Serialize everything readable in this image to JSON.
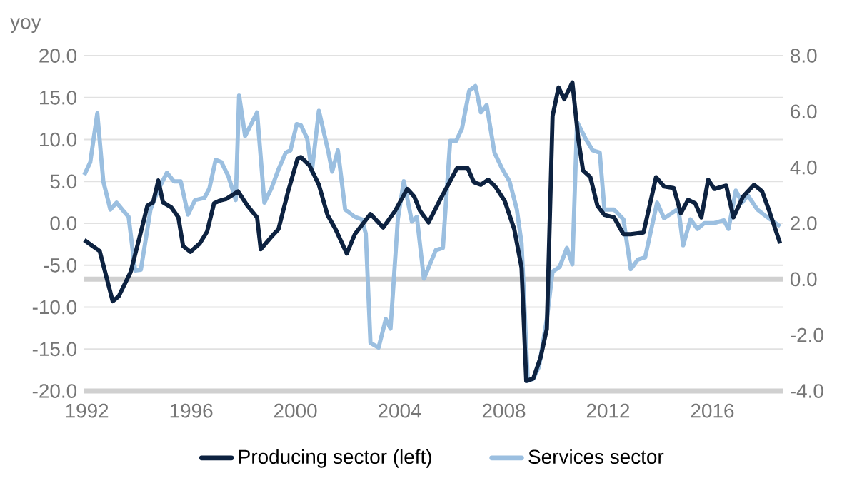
{
  "chart_data": {
    "type": "line",
    "ylabel": "yoy",
    "xlim": [
      1991.9,
      2018.7
    ],
    "xticks": [
      1992,
      1996,
      2000,
      2004,
      2008,
      2012,
      2016
    ],
    "ylim": [
      -20,
      20
    ],
    "yticks": [
      {
        "value": 20,
        "label": "20.0"
      },
      {
        "value": 15,
        "label": "15.0"
      },
      {
        "value": 10,
        "label": "10.0"
      },
      {
        "value": 5,
        "label": "5.0"
      },
      {
        "value": 0,
        "label": "0.0"
      },
      {
        "value": -5,
        "label": "-5.0"
      },
      {
        "value": -10,
        "label": "-10.0"
      },
      {
        "value": -15,
        "label": "-15.0"
      },
      {
        "value": -20,
        "label": "-20.0"
      }
    ],
    "y2lim": [
      -4,
      8
    ],
    "y2ticks": [
      {
        "value": 8,
        "label": "8.0"
      },
      {
        "value": 6,
        "label": "6.0"
      },
      {
        "value": 4,
        "label": "4.0"
      },
      {
        "value": 2,
        "label": "2.0"
      },
      {
        "value": 0,
        "label": "0.0"
      },
      {
        "value": -2,
        "label": "-2.0"
      },
      {
        "value": -4,
        "label": "-4.0"
      }
    ],
    "grid": "y",
    "legend": "bottom",
    "ref_lines": [
      {
        "axis": "y2",
        "value": 0,
        "color": "#d0d0d0"
      }
    ],
    "series": [
      {
        "name": "Producing sector (left)",
        "color": "#0d2240",
        "x": [
          1991.9,
          1992.49,
          1992.99,
          1993.22,
          1993.68,
          1994.14,
          1994.32,
          1994.54,
          1994.74,
          1994.92,
          1995.24,
          1995.51,
          1995.69,
          1995.97,
          1996.33,
          1996.61,
          1996.88,
          1997.1,
          1997.34,
          1997.8,
          1998.16,
          1998.53,
          1998.67,
          1999.08,
          1999.35,
          1999.72,
          2000.08,
          2000.21,
          2000.54,
          2000.9,
          2001.23,
          2001.54,
          2001.97,
          2002.28,
          2002.88,
          2003.37,
          2003.83,
          2004.29,
          2004.56,
          2004.78,
          2005.11,
          2005.57,
          2006.21,
          2006.61,
          2006.85,
          2007.12,
          2007.4,
          2007.67,
          2008.03,
          2008.4,
          2008.68,
          2008.86,
          2009.13,
          2009.41,
          2009.65,
          2009.87,
          2010.1,
          2010.32,
          2010.63,
          2010.86,
          2011.04,
          2011.32,
          2011.59,
          2011.86,
          2012.23,
          2012.59,
          2012.87,
          2013.36,
          2013.84,
          2014.15,
          2014.52,
          2014.79,
          2015.07,
          2015.34,
          2015.58,
          2015.84,
          2016.08,
          2016.53,
          2016.81,
          2017.18,
          2017.6,
          2017.91,
          2018.18,
          2018.6
        ],
        "values": [
          -2.0,
          -3.3,
          -9.3,
          -8.7,
          -5.8,
          -0.2,
          2.1,
          2.5,
          5.1,
          2.5,
          1.9,
          0.7,
          -2.7,
          -3.4,
          -2.4,
          -1.0,
          2.4,
          2.7,
          2.9,
          3.8,
          2.1,
          0.7,
          -3.1,
          -1.6,
          -0.7,
          3.8,
          7.7,
          7.9,
          6.9,
          4.6,
          1.0,
          -0.7,
          -3.6,
          -1.3,
          1.1,
          -0.5,
          1.5,
          4.1,
          3.2,
          1.5,
          0.1,
          2.9,
          6.6,
          6.6,
          4.9,
          4.6,
          5.2,
          4.4,
          2.7,
          -0.7,
          -5.3,
          -18.8,
          -18.5,
          -16.0,
          -12.6,
          12.8,
          16.2,
          14.8,
          16.8,
          10.0,
          6.3,
          5.5,
          2.1,
          1.0,
          0.7,
          -1.3,
          -1.3,
          -1.1,
          5.5,
          4.4,
          4.2,
          1.2,
          2.8,
          2.4,
          0.7,
          5.2,
          4.1,
          4.5,
          0.7,
          3.2,
          4.6,
          3.8,
          1.5,
          -2.4
        ]
      },
      {
        "name": "Services sector",
        "color": "#9bbfe0",
        "axis": "y2",
        "x": [
          1991.9,
          1992.13,
          1992.4,
          1992.63,
          1992.9,
          1993.14,
          1993.36,
          1993.6,
          1993.85,
          1994.07,
          1994.44,
          1994.72,
          1995.07,
          1995.34,
          1995.6,
          1995.88,
          1996.15,
          1996.51,
          1996.7,
          1996.94,
          1997.16,
          1997.43,
          1997.71,
          1997.84,
          1998.07,
          1998.53,
          1998.81,
          1999.08,
          1999.35,
          1999.63,
          1999.81,
          2000.05,
          2000.21,
          2000.45,
          2000.63,
          2000.9,
          2001.27,
          2001.41,
          2001.63,
          2001.91,
          2002.28,
          2002.55,
          2002.7,
          2002.88,
          2003.19,
          2003.47,
          2003.65,
          2003.93,
          2004.16,
          2004.47,
          2004.66,
          2004.93,
          2005.39,
          2005.66,
          2005.94,
          2006.17,
          2006.39,
          2006.67,
          2006.91,
          2007.12,
          2007.34,
          2007.64,
          2007.95,
          2008.22,
          2008.5,
          2008.68,
          2008.92,
          2009.13,
          2009.35,
          2009.65,
          2009.87,
          2010.14,
          2010.42,
          2010.63,
          2010.81,
          2011.13,
          2011.41,
          2011.68,
          2011.86,
          2012.23,
          2012.59,
          2012.87,
          2013.14,
          2013.42,
          2013.88,
          2014.15,
          2014.7,
          2014.88,
          2015.16,
          2015.43,
          2015.7,
          2016.08,
          2016.44,
          2016.62,
          2016.9,
          2017.14,
          2017.36,
          2017.73,
          2018.09,
          2018.6
        ],
        "values": [
          3.73,
          4.19,
          5.94,
          3.5,
          2.49,
          2.74,
          2.49,
          2.23,
          0.31,
          0.34,
          2.49,
          3.17,
          3.81,
          3.5,
          3.5,
          2.31,
          2.83,
          2.91,
          3.25,
          4.27,
          4.19,
          3.68,
          2.83,
          6.57,
          5.12,
          5.97,
          2.74,
          3.25,
          3.93,
          4.53,
          4.61,
          5.55,
          5.51,
          5.04,
          3.85,
          6.03,
          4.53,
          3.85,
          4.61,
          2.49,
          2.23,
          2.14,
          1.63,
          -2.28,
          -2.45,
          -1.43,
          -1.77,
          2.14,
          3.51,
          2.06,
          2.23,
          0.02,
          1.04,
          1.12,
          4.95,
          4.95,
          5.38,
          6.74,
          6.91,
          5.97,
          6.23,
          4.53,
          3.93,
          3.5,
          2.49,
          1.29,
          -3.64,
          -3.56,
          -3.13,
          -1.43,
          0.27,
          0.44,
          1.12,
          0.53,
          5.63,
          5.04,
          4.61,
          4.53,
          2.49,
          2.49,
          2.14,
          0.36,
          0.7,
          0.78,
          2.74,
          2.18,
          2.52,
          1.21,
          2.14,
          1.8,
          2.01,
          2.01,
          2.11,
          1.8,
          3.17,
          2.74,
          3.0,
          2.49,
          2.23,
          1.89
        ]
      }
    ]
  }
}
